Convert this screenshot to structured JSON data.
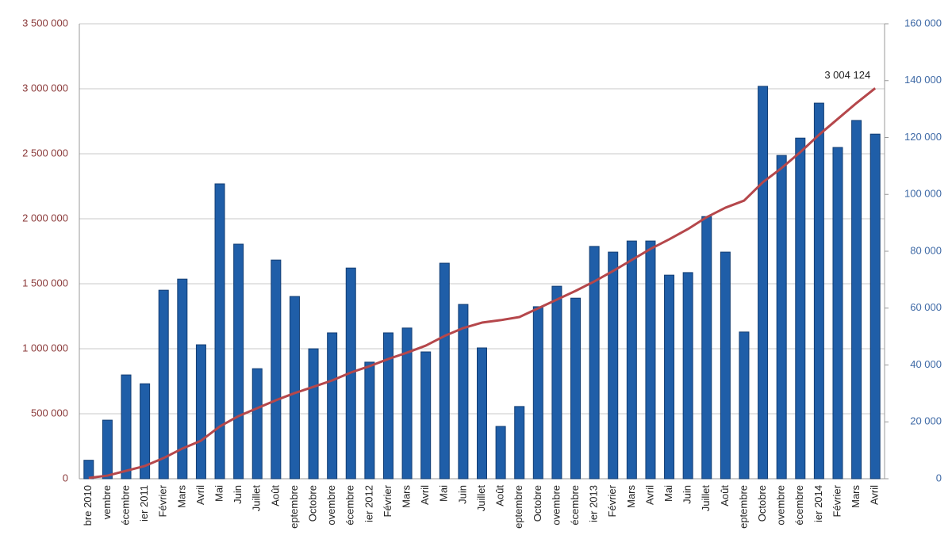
{
  "chart_data": {
    "type": "bar",
    "categories": [
      "bre 2010",
      "vembre",
      "écembre",
      "ier 2011",
      "Février",
      "Mars",
      "Avril",
      "Mai",
      "Juin",
      "Juillet",
      "Août",
      "eptembre",
      "Octobre",
      "ovembre",
      "écembre",
      "ier 2012",
      "Février",
      "Mars",
      "Avril",
      "Mai",
      "Juin",
      "Juillet",
      "Août",
      "eptembre",
      "Octobre",
      "ovembre",
      "écembre",
      "ier 2013",
      "Février",
      "Mars",
      "Avril",
      "Mai",
      "Juin",
      "Juillet",
      "Août",
      "eptembre",
      "Octobre",
      "ovembre",
      "écembre",
      "ier 2014",
      "Février",
      "Mars",
      "Avril"
    ],
    "series": [
      {
        "type": "bar",
        "axis": "y2",
        "color": "#1f5ea8",
        "values": [
          6500,
          20600,
          36500,
          33400,
          66300,
          70200,
          47100,
          103700,
          82500,
          38700,
          76900,
          64100,
          45700,
          51300,
          74100,
          41000,
          51300,
          53000,
          44600,
          75800,
          61300,
          46000,
          18400,
          25400,
          60500,
          67700,
          63500,
          81700,
          79700,
          83600,
          83600,
          71600,
          72500,
          92200,
          79700,
          51600,
          138000,
          113700,
          119800,
          132100,
          116500,
          126000,
          121200
        ]
      },
      {
        "type": "line",
        "color": "#b5474b",
        "values": [
          6000,
          24000,
          61000,
          98000,
          159000,
          232000,
          293000,
          402000,
          482000,
          543000,
          604000,
          659000,
          707000,
          756000,
          817000,
          866000,
          921000,
          970000,
          1024000,
          1098000,
          1159000,
          1201000,
          1220000,
          1244000,
          1311000,
          1378000,
          1445000,
          1518000,
          1598000,
          1683000,
          1768000,
          1842000,
          1921000,
          2012000,
          2085000,
          2140000,
          2281000,
          2390000,
          2512000,
          2646000,
          2768000,
          2890000,
          3004124
        ],
        "value_labels": [
          null,
          null,
          null,
          null,
          null,
          null,
          null,
          null,
          null,
          null,
          null,
          null,
          null,
          null,
          null,
          null,
          null,
          null,
          null,
          null,
          null,
          null,
          null,
          null,
          null,
          null,
          null,
          null,
          null,
          null,
          null,
          null,
          null,
          null,
          null,
          null,
          null,
          null,
          null,
          null,
          null,
          null,
          "3 004 124"
        ]
      }
    ],
    "ylim": [
      0,
      3500000
    ],
    "yticks": [
      0,
      {
        "value": 500000,
        "label": "500 000"
      },
      {
        "value": 1000000,
        "label": "1 000 000"
      },
      {
        "value": 1500000,
        "label": "1 500 000"
      },
      {
        "value": 2000000,
        "label": "2 000 000"
      },
      {
        "value": 2500000,
        "label": "2 500 000"
      },
      {
        "value": 3000000,
        "label": "3 000 000"
      },
      {
        "value": 3500000,
        "label": "3 500 000"
      }
    ],
    "y2lim": [
      0,
      160000
    ],
    "y2ticks": [
      0,
      {
        "value": 20000,
        "label": "20 000"
      },
      {
        "value": 40000,
        "label": "40 000"
      },
      {
        "value": 60000,
        "label": "60 000"
      },
      {
        "value": 80000,
        "label": "80 000"
      },
      {
        "value": 100000,
        "label": "100 000"
      },
      {
        "value": 120000,
        "label": "120 000"
      },
      {
        "value": 140000,
        "label": "140 000"
      },
      {
        "value": 160000,
        "label": "160 000"
      }
    ],
    "grid": true,
    "ytick_color": "#8b3a3a",
    "y2tick_color": "#3f6aa6"
  }
}
